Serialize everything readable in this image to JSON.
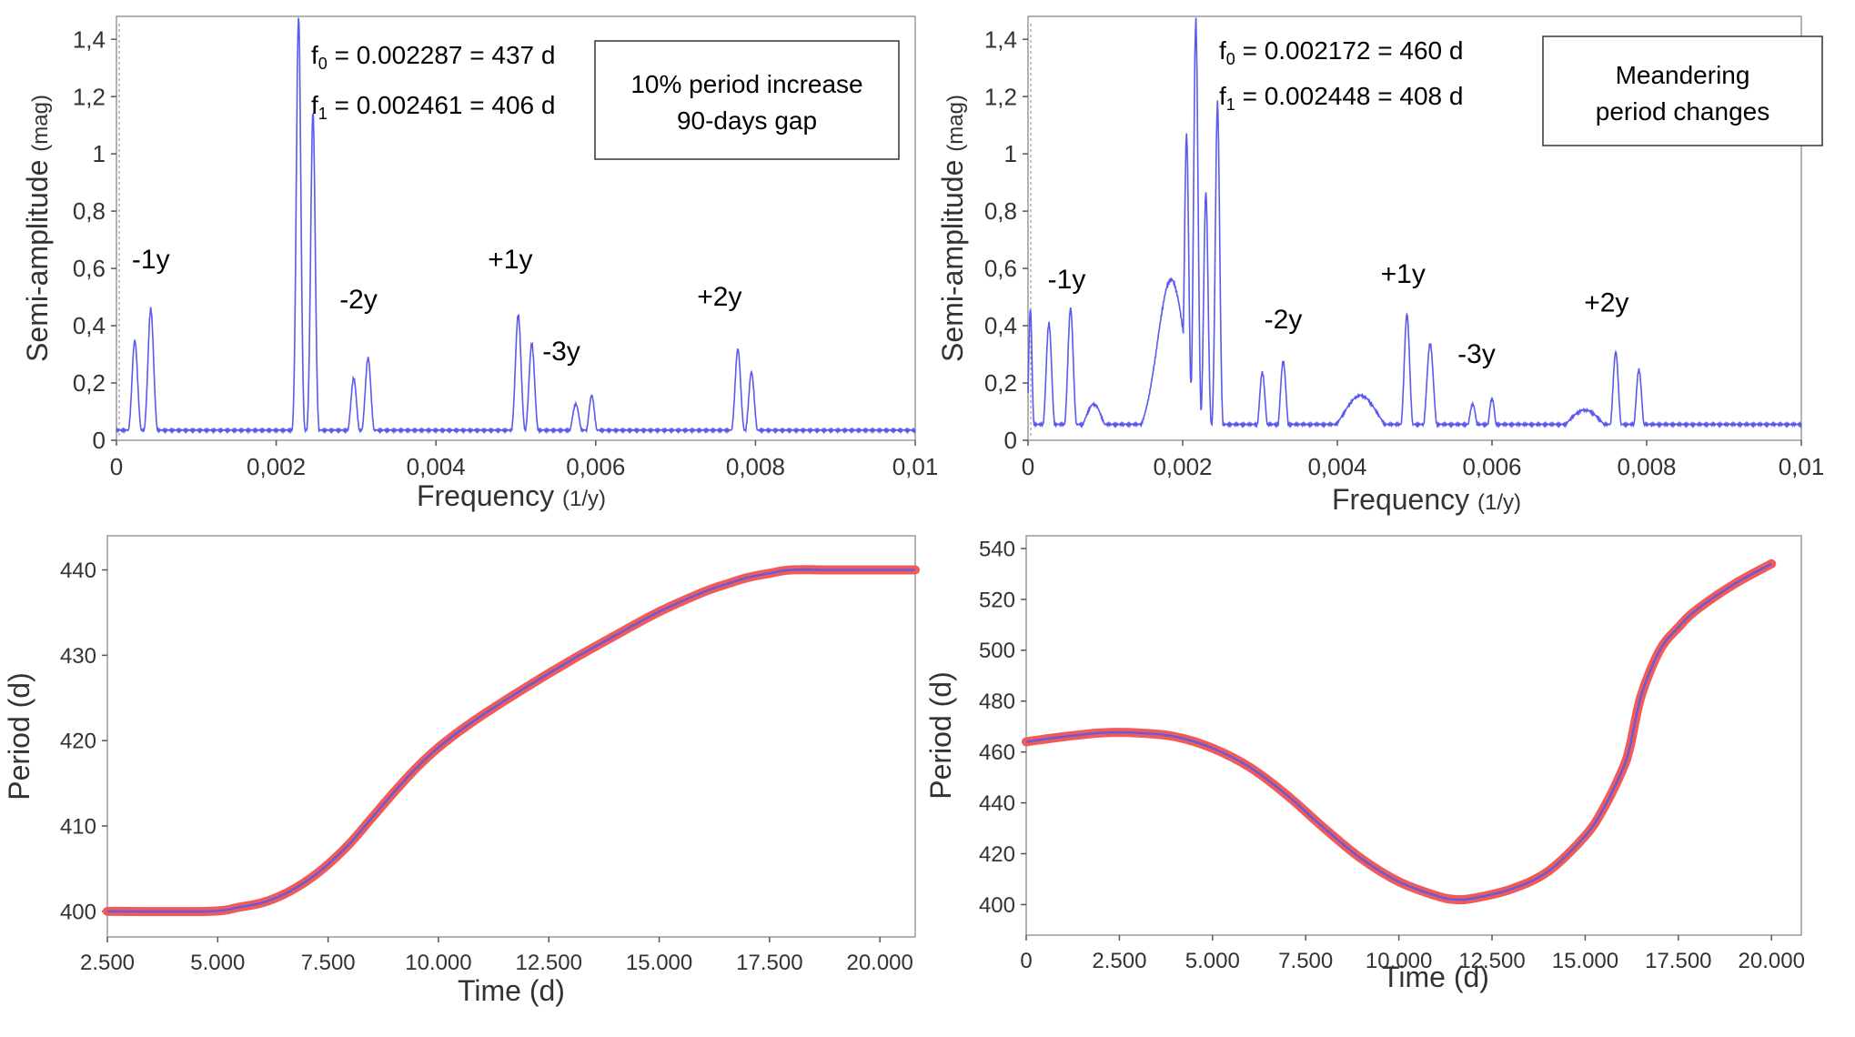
{
  "chart_data": [
    {
      "id": "spectrum-left",
      "type": "line",
      "xlabel": "Frequency",
      "xunit": "(1/y)",
      "ylabel": "Semi-amplitude",
      "yunit": "(mag)",
      "xlim": [
        0,
        0.01
      ],
      "ylim": [
        0,
        1.48
      ],
      "xticks": [
        0,
        0.002,
        0.004,
        0.006,
        0.008,
        0.01
      ],
      "xtick_labels": [
        "0",
        "0,002",
        "0,004",
        "0,006",
        "0,008",
        "0,01"
      ],
      "yticks": [
        0,
        0.2,
        0.4,
        0.6,
        0.8,
        1,
        1.2,
        1.4
      ],
      "ytick_labels": [
        "0",
        "0,2",
        "0,4",
        "0,6",
        "0,8",
        "1",
        "1,2",
        "1,4"
      ],
      "color": "#5a5aee",
      "baseline": 0.03,
      "peaks": [
        {
          "f": 0.00023,
          "a": 0.34,
          "w": 5e-05
        },
        {
          "f": 0.00043,
          "a": 0.45,
          "w": 5e-05
        },
        {
          "f": 0.00228,
          "a": 1.47,
          "w": 4e-05
        },
        {
          "f": 0.00246,
          "a": 1.13,
          "w": 4e-05
        },
        {
          "f": 0.00297,
          "a": 0.21,
          "w": 5e-05
        },
        {
          "f": 0.00315,
          "a": 0.28,
          "w": 5e-05
        },
        {
          "f": 0.00503,
          "a": 0.43,
          "w": 5e-05
        },
        {
          "f": 0.0052,
          "a": 0.33,
          "w": 5e-05
        },
        {
          "f": 0.00575,
          "a": 0.12,
          "w": 6e-05
        },
        {
          "f": 0.00595,
          "a": 0.15,
          "w": 5e-05
        },
        {
          "f": 0.00778,
          "a": 0.31,
          "w": 5e-05
        },
        {
          "f": 0.00795,
          "a": 0.23,
          "w": 5e-05
        }
      ],
      "annotations": [
        {
          "text": "-1y",
          "f": 0.00043,
          "a": 0.6
        },
        {
          "text": "-2y",
          "f": 0.00303,
          "a": 0.46
        },
        {
          "text": "+1y",
          "f": 0.00493,
          "a": 0.6
        },
        {
          "text": "-3y",
          "f": 0.00557,
          "a": 0.28
        },
        {
          "text": "+2y",
          "f": 0.00755,
          "a": 0.47
        }
      ],
      "freq_labels": [
        {
          "prefix": "f",
          "sub": "0",
          "text": " = 0.002287 = 437 d"
        },
        {
          "prefix": "f",
          "sub": "1",
          "text": " = 0.002461 = 406 d"
        }
      ],
      "legend_box": [
        "10% period increase",
        "90-days gap"
      ]
    },
    {
      "id": "spectrum-right",
      "type": "line",
      "xlabel": "Frequency",
      "xunit": "(1/y)",
      "ylabel": "Semi-amplitude",
      "yunit": "(mag)",
      "xlim": [
        0,
        0.01
      ],
      "ylim": [
        0,
        1.48
      ],
      "xticks": [
        0,
        0.002,
        0.004,
        0.006,
        0.008,
        0.01
      ],
      "xtick_labels": [
        "0",
        "0,002",
        "0,004",
        "0,006",
        "0,008",
        "0,01"
      ],
      "yticks": [
        0,
        0.2,
        0.4,
        0.6,
        0.8,
        1,
        1.2,
        1.4
      ],
      "ytick_labels": [
        "0",
        "0,2",
        "0,4",
        "0,6",
        "0,8",
        "1",
        "1,2",
        "1,4"
      ],
      "color": "#5a5aee",
      "baseline": 0.05,
      "peaks": [
        {
          "f": 3e-05,
          "a": 0.45,
          "w": 3e-05
        },
        {
          "f": 0.00027,
          "a": 0.4,
          "w": 5e-05
        },
        {
          "f": 0.00055,
          "a": 0.45,
          "w": 5e-05
        },
        {
          "f": 0.00085,
          "a": 0.12,
          "w": 0.00015
        },
        {
          "f": 0.00185,
          "a": 0.55,
          "w": 0.00025
        },
        {
          "f": 0.00205,
          "a": 1.05,
          "w": 4e-05
        },
        {
          "f": 0.00217,
          "a": 1.45,
          "w": 4e-05
        },
        {
          "f": 0.0023,
          "a": 0.85,
          "w": 4e-05
        },
        {
          "f": 0.00245,
          "a": 1.16,
          "w": 4e-05
        },
        {
          "f": 0.00303,
          "a": 0.23,
          "w": 5e-05
        },
        {
          "f": 0.0033,
          "a": 0.27,
          "w": 5e-05
        },
        {
          "f": 0.0043,
          "a": 0.15,
          "w": 0.0003
        },
        {
          "f": 0.0049,
          "a": 0.43,
          "w": 5e-05
        },
        {
          "f": 0.0052,
          "a": 0.33,
          "w": 6e-05
        },
        {
          "f": 0.00575,
          "a": 0.12,
          "w": 6e-05
        },
        {
          "f": 0.006,
          "a": 0.14,
          "w": 5e-05
        },
        {
          "f": 0.0072,
          "a": 0.1,
          "w": 0.0003
        },
        {
          "f": 0.0076,
          "a": 0.3,
          "w": 5e-05
        },
        {
          "f": 0.0079,
          "a": 0.24,
          "w": 5e-05
        },
        {
          "f": 0.00998,
          "a": 0.04,
          "w": 0.0001
        }
      ],
      "annotations": [
        {
          "text": "-1y",
          "f": 0.0005,
          "a": 0.53
        },
        {
          "text": "-2y",
          "f": 0.0033,
          "a": 0.39
        },
        {
          "text": "+1y",
          "f": 0.00485,
          "a": 0.55
        },
        {
          "text": "-3y",
          "f": 0.0058,
          "a": 0.27
        },
        {
          "text": "+2y",
          "f": 0.00748,
          "a": 0.45
        }
      ],
      "freq_labels": [
        {
          "prefix": "f",
          "sub": "0",
          "text": " = 0.002172 = 460 d"
        },
        {
          "prefix": "f",
          "sub": "1",
          "text": " = 0.002448 = 408 d"
        }
      ],
      "legend_box": [
        "Meandering",
        "period changes"
      ]
    },
    {
      "id": "period-left",
      "type": "line",
      "xlabel": "Time (d)",
      "ylabel": "Period (d)",
      "xlim": [
        2500,
        20800
      ],
      "ylim": [
        397,
        444
      ],
      "xticks": [
        2500,
        5000,
        7500,
        10000,
        12500,
        15000,
        17500,
        20000
      ],
      "xtick_labels": [
        "2.500",
        "5.000",
        "7.500",
        "10.000",
        "12.500",
        "15.000",
        "17.500",
        "20.000"
      ],
      "yticks": [
        400,
        410,
        420,
        430,
        440
      ],
      "ytick_labels": [
        "400",
        "410",
        "420",
        "430",
        "440"
      ],
      "series": [
        {
          "name": "Period",
          "x": [
            2500,
            4800,
            5500,
            6000,
            6500,
            7000,
            7500,
            8000,
            8500,
            9000,
            9500,
            10000,
            10500,
            11000,
            12000,
            13000,
            14000,
            15000,
            16000,
            16500,
            17000,
            17500,
            18000,
            19000,
            20800
          ],
          "y": [
            400,
            400,
            400.5,
            401,
            402,
            403.5,
            405.5,
            408,
            411,
            414,
            416.8,
            419.2,
            421.2,
            423,
            426.3,
            429.4,
            432.3,
            435.1,
            437.4,
            438.3,
            439.1,
            439.6,
            440,
            440,
            440
          ]
        }
      ]
    },
    {
      "id": "period-right",
      "type": "line",
      "xlabel": "Time (d)",
      "ylabel": "Period (d)",
      "xlim": [
        0,
        20800
      ],
      "ylim": [
        388,
        545
      ],
      "xticks": [
        0,
        2500,
        5000,
        7500,
        10000,
        12500,
        15000,
        17500,
        20000
      ],
      "xtick_labels": [
        "0",
        "2.500",
        "5.000",
        "7.500",
        "10.000",
        "12.500",
        "15.000",
        "17.500",
        "20.000"
      ],
      "yticks": [
        400,
        420,
        440,
        460,
        480,
        500,
        520,
        540
      ],
      "ytick_labels": [
        "400",
        "420",
        "440",
        "460",
        "480",
        "500",
        "520",
        "540"
      ],
      "series": [
        {
          "name": "Period",
          "x": [
            0,
            1000,
            2000,
            3000,
            4000,
            5000,
            6000,
            7000,
            8000,
            9000,
            10000,
            11000,
            11500,
            12000,
            13000,
            14000,
            15000,
            15500,
            16000,
            16200,
            16500,
            17000,
            17500,
            18000,
            19000,
            20000
          ],
          "y": [
            464,
            466,
            467.5,
            467.5,
            466,
            461.5,
            454,
            443,
            430,
            418,
            409,
            403.5,
            402,
            402.5,
            406,
            413,
            427,
            438,
            453,
            462,
            482,
            500,
            509,
            516,
            526,
            534
          ]
        }
      ]
    }
  ]
}
